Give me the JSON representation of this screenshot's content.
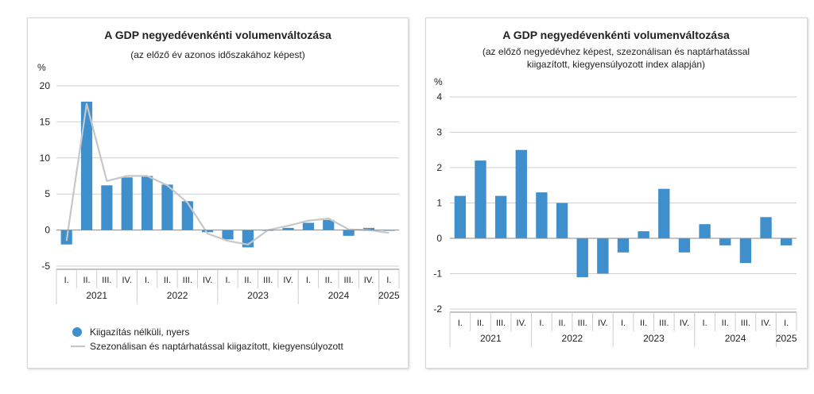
{
  "colors": {
    "bar": "#3f8fcd",
    "line": "#c7c7c7",
    "grid": "#cfcfcf",
    "axis": "#8a8a8a"
  },
  "chart_data": [
    {
      "type": "bar",
      "title": "A GDP negyedévenkénti volumenváltozása",
      "subtitle": "(az előző év azonos időszakához képest)",
      "ylabel": "%",
      "ylim": [
        -5,
        20
      ],
      "yticks": [
        -5,
        0,
        5,
        10,
        15,
        20
      ],
      "categories": [
        "I.",
        "II.",
        "III.",
        "IV.",
        "I.",
        "II.",
        "III.",
        "IV.",
        "I.",
        "II.",
        "III.",
        "IV.",
        "I.",
        "II.",
        "III.",
        "IV.",
        "I."
      ],
      "years": [
        {
          "label": "2021",
          "quarters": 4
        },
        {
          "label": "2022",
          "quarters": 4
        },
        {
          "label": "2023",
          "quarters": 4
        },
        {
          "label": "2024",
          "quarters": 4
        },
        {
          "label": "2025",
          "quarters": 1
        }
      ],
      "series": [
        {
          "name": "Kiigazítás nélküli, nyers",
          "type": "bar",
          "values": [
            -2.0,
            17.8,
            6.2,
            7.3,
            7.5,
            6.3,
            4.0,
            -0.3,
            -1.3,
            -2.4,
            -0.1,
            0.3,
            1.0,
            1.4,
            -0.8,
            0.3,
            -0.1
          ]
        },
        {
          "name": "Szezonálisan és naptárhatással kiigazított, kiegyensúlyozott",
          "type": "line",
          "values": [
            -1.5,
            17.5,
            6.8,
            7.5,
            7.5,
            6.2,
            3.8,
            -0.5,
            -1.5,
            -2.0,
            0.0,
            0.6,
            1.3,
            1.6,
            0.1,
            0.0,
            -0.4
          ]
        }
      ],
      "legend_position": "bottom",
      "grid": true
    },
    {
      "type": "bar",
      "title": "A GDP negyedévenkénti volumenváltozása",
      "subtitle_lines": [
        "(az előző negyedévhez képest, szezonálisan és naptárhatással",
        "kiigazított, kiegyensúlyozott index alapján)"
      ],
      "ylabel": "%",
      "ylim": [
        -2,
        4
      ],
      "yticks": [
        -2,
        -1,
        0,
        1,
        2,
        3,
        4
      ],
      "categories": [
        "I.",
        "II.",
        "III.",
        "IV.",
        "I.",
        "II.",
        "III.",
        "IV.",
        "I.",
        "II.",
        "III.",
        "IV.",
        "I.",
        "II.",
        "III.",
        "IV.",
        "I."
      ],
      "years": [
        {
          "label": "2021",
          "quarters": 4
        },
        {
          "label": "2022",
          "quarters": 4
        },
        {
          "label": "2023",
          "quarters": 4
        },
        {
          "label": "2024",
          "quarters": 4
        },
        {
          "label": "2025",
          "quarters": 1
        }
      ],
      "series": [
        {
          "type": "bar",
          "values": [
            1.2,
            2.2,
            1.2,
            2.5,
            1.3,
            1.0,
            -1.1,
            -1.0,
            -0.4,
            0.2,
            1.4,
            -0.4,
            0.4,
            -0.2,
            -0.7,
            0.6,
            -0.2
          ]
        }
      ],
      "grid": true
    }
  ]
}
